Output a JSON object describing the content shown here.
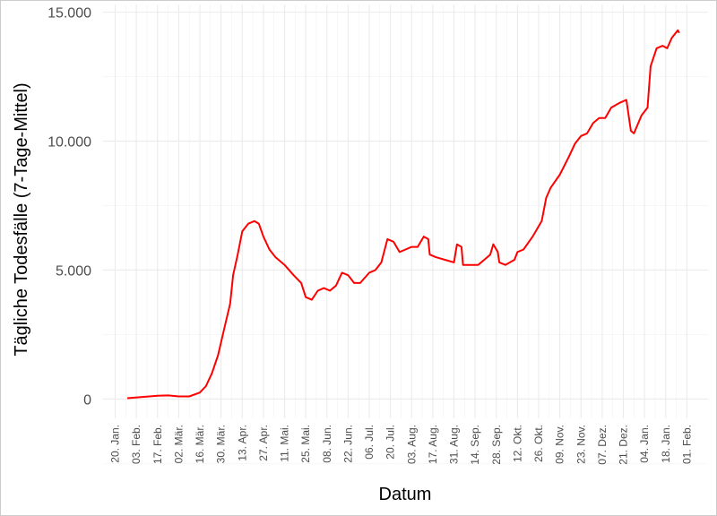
{
  "chart_data": {
    "type": "line",
    "x_label": "Datum",
    "y_label": "Tägliche Todesfälle (7-Tage-Mittel)",
    "color": "#ff0000",
    "grid": true,
    "x": [
      8,
      28,
      35,
      42,
      49,
      56,
      60,
      64,
      68,
      72,
      76,
      78,
      81,
      84,
      88,
      92,
      95,
      98,
      102,
      106,
      112,
      118,
      123,
      126,
      130,
      134,
      138,
      142,
      146,
      150,
      154,
      158,
      162,
      168,
      172,
      176,
      180,
      184,
      188,
      192,
      196,
      200,
      204,
      207,
      208,
      212,
      218,
      224,
      226,
      229,
      230,
      236,
      240,
      244,
      248,
      250,
      253,
      254,
      258,
      264,
      266,
      270,
      276,
      282,
      285,
      288,
      294,
      300,
      304,
      308,
      312,
      316,
      320,
      324,
      328,
      334,
      338,
      341,
      343,
      348,
      352,
      354,
      358,
      362,
      365,
      368,
      372,
      373
    ],
    "values": [
      30,
      130,
      140,
      100,
      100,
      250,
      500,
      1000,
      1700,
      2700,
      3700,
      4800,
      5600,
      6500,
      6800,
      6900,
      6800,
      6300,
      5800,
      5500,
      5200,
      4800,
      4500,
      3950,
      3850,
      4200,
      4300,
      4200,
      4400,
      4900,
      4800,
      4500,
      4500,
      4900,
      5000,
      5300,
      6200,
      6100,
      5700,
      5800,
      5900,
      5900,
      6300,
      6200,
      5600,
      5500,
      5400,
      5300,
      6000,
      5900,
      5200,
      5200,
      5200,
      5400,
      5600,
      6000,
      5700,
      5300,
      5200,
      5400,
      5700,
      5800,
      6300,
      6900,
      7800,
      8200,
      8700,
      9400,
      9900,
      10200,
      10300,
      10700,
      10900,
      10900,
      11300,
      11500,
      11600,
      10400,
      10300,
      11000,
      11300,
      12900,
      13600,
      13700,
      13600,
      14000,
      14300,
      14200
    ],
    "xlim": [
      -8,
      392
    ],
    "xticks": [
      {
        "value": 0,
        "label": "20. Jan."
      },
      {
        "value": 14,
        "label": "03. Feb."
      },
      {
        "value": 28,
        "label": "17. Feb."
      },
      {
        "value": 42,
        "label": "02. Mär."
      },
      {
        "value": 56,
        "label": "16. Mär."
      },
      {
        "value": 70,
        "label": "30. Mär."
      },
      {
        "value": 84,
        "label": "13. Apr."
      },
      {
        "value": 98,
        "label": "27. Apr."
      },
      {
        "value": 112,
        "label": "11. Mai."
      },
      {
        "value": 126,
        "label": "25. Mai."
      },
      {
        "value": 140,
        "label": "08. Jun."
      },
      {
        "value": 154,
        "label": "22. Jun."
      },
      {
        "value": 168,
        "label": "06. Jul."
      },
      {
        "value": 182,
        "label": "20. Jul."
      },
      {
        "value": 196,
        "label": "03. Aug."
      },
      {
        "value": 210,
        "label": "17. Aug."
      },
      {
        "value": 224,
        "label": "31. Aug."
      },
      {
        "value": 238,
        "label": "14. Sep."
      },
      {
        "value": 252,
        "label": "28. Sep."
      },
      {
        "value": 266,
        "label": "12. Okt."
      },
      {
        "value": 280,
        "label": "26. Okt."
      },
      {
        "value": 294,
        "label": "09. Nov."
      },
      {
        "value": 308,
        "label": "23. Nov."
      },
      {
        "value": 322,
        "label": "07. Dez."
      },
      {
        "value": 336,
        "label": "21. Dez."
      },
      {
        "value": 350,
        "label": "04. Jan."
      },
      {
        "value": 364,
        "label": "18. Jan."
      },
      {
        "value": 378,
        "label": "01. Feb."
      }
    ],
    "ylim": [
      -750,
      15300
    ],
    "yticks": [
      0,
      {
        "value": 5000,
        "label": "5.000"
      },
      {
        "value": 10000,
        "label": "10.000"
      },
      {
        "value": 15000,
        "label": "15.000"
      }
    ]
  }
}
